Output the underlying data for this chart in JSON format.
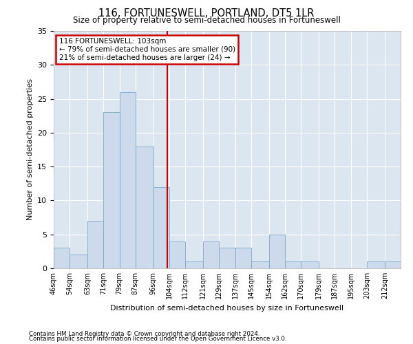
{
  "title": "116, FORTUNESWELL, PORTLAND, DT5 1LR",
  "subtitle": "Size of property relative to semi-detached houses in Fortuneswell",
  "xlabel": "Distribution of semi-detached houses by size in Fortuneswell",
  "ylabel": "Number of semi-detached properties",
  "footer1": "Contains HM Land Registry data © Crown copyright and database right 2024.",
  "footer2": "Contains public sector information licensed under the Open Government Licence v3.0.",
  "annotation_title": "116 FORTUNESWELL: 103sqm",
  "annotation_line1": "← 79% of semi-detached houses are smaller (90)",
  "annotation_line2": "21% of semi-detached houses are larger (24) →",
  "property_size": 103,
  "bar_color": "#ccdaeb",
  "bar_edge_color": "#7aaac8",
  "highlight_line_color": "#cc0000",
  "annotation_box_color": "#cc0000",
  "background_color": "#dce6f0",
  "categories": [
    "46sqm",
    "54sqm",
    "63sqm",
    "71sqm",
    "79sqm",
    "87sqm",
    "96sqm",
    "104sqm",
    "112sqm",
    "121sqm",
    "129sqm",
    "137sqm",
    "145sqm",
    "154sqm",
    "162sqm",
    "170sqm",
    "179sqm",
    "187sqm",
    "195sqm",
    "203sqm",
    "212sqm"
  ],
  "values": [
    3,
    2,
    7,
    23,
    26,
    18,
    12,
    4,
    1,
    4,
    3,
    3,
    1,
    5,
    1,
    1,
    0,
    0,
    0,
    1,
    1
  ],
  "bin_edges": [
    46,
    54,
    63,
    71,
    79,
    87,
    96,
    104,
    112,
    121,
    129,
    137,
    145,
    154,
    162,
    170,
    179,
    187,
    195,
    203,
    212,
    220
  ],
  "ylim": [
    0,
    35
  ],
  "yticks": [
    0,
    5,
    10,
    15,
    20,
    25,
    30,
    35
  ]
}
